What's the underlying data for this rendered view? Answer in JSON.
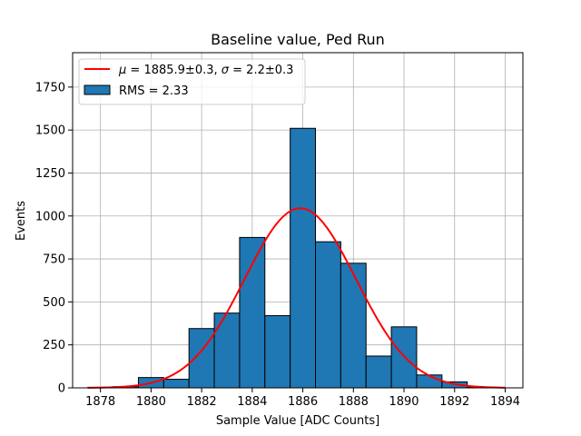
{
  "chart_data": {
    "type": "bar",
    "title": "Baseline value, Ped Run",
    "xlabel": "Sample Value [ADC Counts]",
    "ylabel": "Events",
    "xlim": [
      1876.9,
      1894.7
    ],
    "ylim": [
      0,
      1950
    ],
    "xticks": [
      1878,
      1880,
      1882,
      1884,
      1886,
      1888,
      1890,
      1892,
      1894
    ],
    "yticks": [
      0,
      250,
      500,
      750,
      1000,
      1250,
      1500,
      1750
    ],
    "grid": true,
    "legend_position": "top-left",
    "bin_edges": [
      1877.5,
      1878.5,
      1879.5,
      1880.5,
      1881.5,
      1882.5,
      1883.5,
      1884.5,
      1885.5,
      1886.5,
      1887.5,
      1888.5,
      1889.5,
      1890.5,
      1891.5,
      1892.5,
      1893.5
    ],
    "counts": [
      3,
      7,
      60,
      50,
      345,
      435,
      875,
      420,
      1510,
      850,
      725,
      185,
      355,
      75,
      35,
      5
    ],
    "histogram": {
      "name": "RMS = 2.33",
      "color": "#1f77b4",
      "edgecolor": "#000000"
    },
    "fit": {
      "name": "μ = 1885.9±0.3, σ = 2.2±0.3",
      "color": "#ff0000",
      "mu": 1885.9,
      "sigma": 2.2,
      "amplitude": 1045,
      "x_range": [
        1877.5,
        1894
      ]
    }
  },
  "legend": {
    "fit_label_mu": "μ",
    "fit_label_rest_a": " = 1885.9±0.3, ",
    "fit_label_sigma": "σ",
    "fit_label_rest_b": " = 2.2±0.3",
    "hist_label": "RMS = 2.33"
  }
}
